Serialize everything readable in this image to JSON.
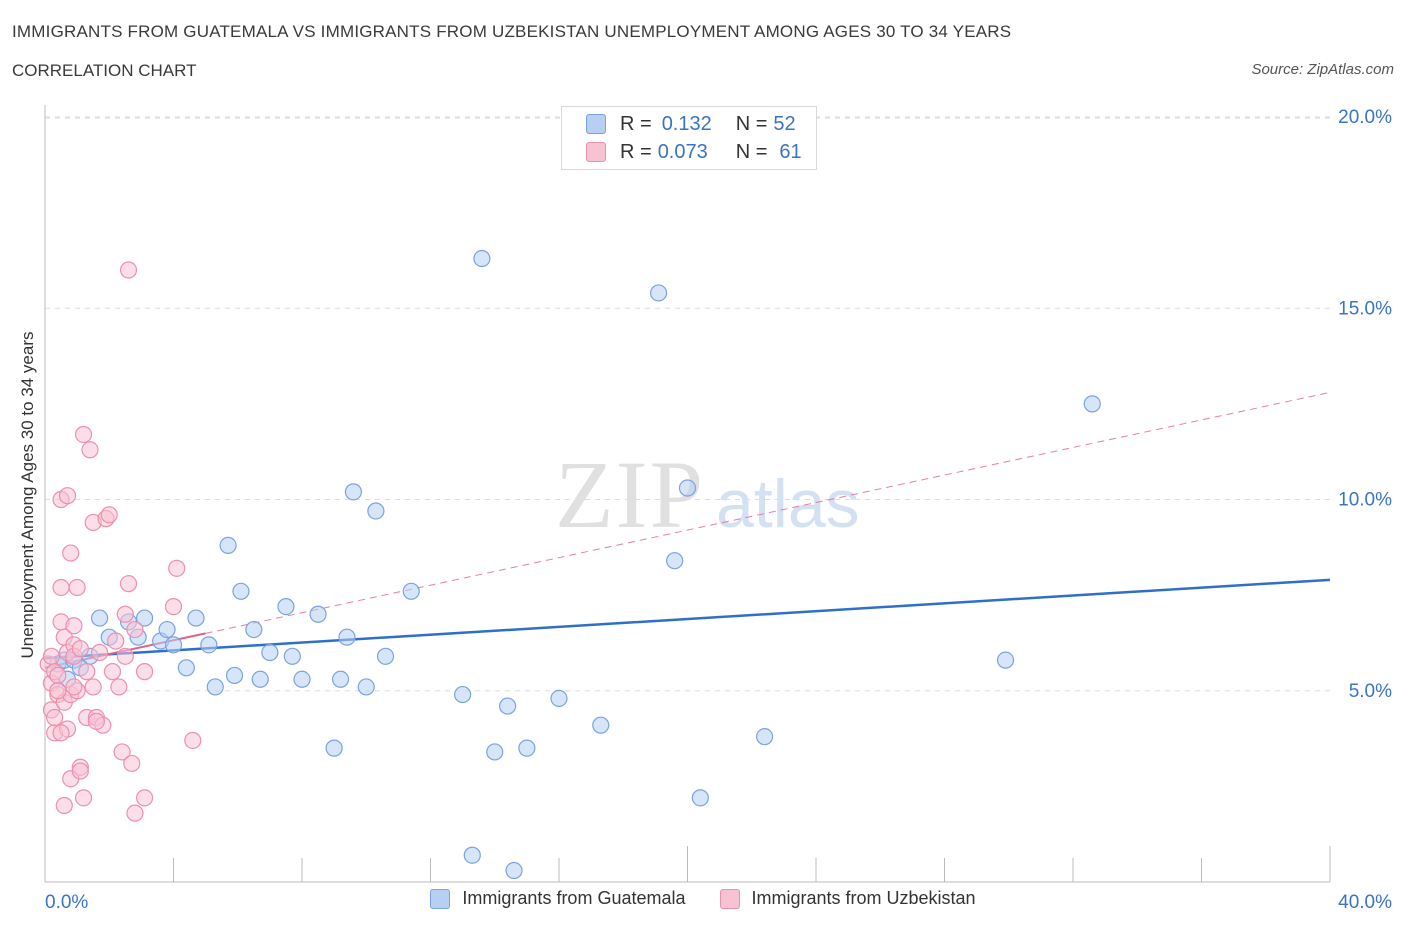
{
  "header": {
    "title": "IMMIGRANTS FROM GUATEMALA VS IMMIGRANTS FROM UZBEKISTAN UNEMPLOYMENT AMONG AGES 30 TO 34 YEARS",
    "subtitle": "CORRELATION CHART",
    "source": "Source: ZipAtlas.com"
  },
  "legend": {
    "r_label": "R =",
    "n_label": "N =",
    "rows": [
      {
        "r": "0.132",
        "n": "52"
      },
      {
        "r": "0.073",
        "n": "61"
      }
    ]
  },
  "watermark": {
    "zip": "ZIP",
    "atlas": "atlas"
  },
  "colors": {
    "guatemala_fill": "#b6cff2",
    "guatemala_stroke": "#7aa3e0",
    "guatemala_line": "#2f6fcc",
    "uzbekistan_fill": "#f7c3d3",
    "uzbekistan_stroke": "#ee8fae",
    "uzbekistan_line": "#e0608e",
    "axis_label": "#3a74c4",
    "grid": "#dddddd"
  },
  "chart_data": {
    "type": "scatter",
    "title": "IMMIGRANTS FROM GUATEMALA VS IMMIGRANTS FROM UZBEKISTAN UNEMPLOYMENT AMONG AGES 30 TO 34 YEARS",
    "xlabel": "",
    "ylabel": "Unemployment Among Ages 30 to 34 years",
    "xlim": [
      0,
      40
    ],
    "ylim": [
      0,
      20
    ],
    "x_tick_labels": [
      "0.0%",
      "40.0%"
    ],
    "y_ticks": [
      5,
      10,
      15,
      20
    ],
    "y_tick_labels": [
      "5.0%",
      "10.0%",
      "15.0%",
      "20.0%"
    ],
    "grid": true,
    "legend_position": "top-center",
    "series": [
      {
        "name": "Immigrants from Guatemala",
        "points": [
          [
            0.4,
            5.7
          ],
          [
            0.6,
            5.8
          ],
          [
            0.7,
            5.3
          ],
          [
            0.9,
            5.8
          ],
          [
            1.4,
            5.9
          ],
          [
            1.7,
            6.9
          ],
          [
            2.0,
            6.4
          ],
          [
            2.6,
            6.8
          ],
          [
            3.1,
            6.9
          ],
          [
            2.9,
            6.4
          ],
          [
            3.6,
            6.3
          ],
          [
            3.8,
            6.6
          ],
          [
            4.0,
            6.2
          ],
          [
            4.4,
            5.6
          ],
          [
            4.7,
            6.9
          ],
          [
            5.1,
            6.2
          ],
          [
            5.3,
            5.1
          ],
          [
            5.7,
            8.8
          ],
          [
            5.9,
            5.4
          ],
          [
            6.1,
            7.6
          ],
          [
            6.5,
            6.6
          ],
          [
            6.7,
            5.3
          ],
          [
            7.0,
            6.0
          ],
          [
            7.5,
            7.2
          ],
          [
            7.7,
            5.9
          ],
          [
            8.0,
            5.3
          ],
          [
            8.5,
            7.0
          ],
          [
            9.0,
            3.5
          ],
          [
            9.2,
            5.3
          ],
          [
            9.4,
            6.4
          ],
          [
            9.6,
            10.2
          ],
          [
            10.0,
            5.1
          ],
          [
            10.3,
            9.7
          ],
          [
            10.6,
            5.9
          ],
          [
            11.4,
            7.6
          ],
          [
            13.0,
            4.9
          ],
          [
            13.3,
            0.7
          ],
          [
            13.6,
            16.3
          ],
          [
            14.0,
            3.4
          ],
          [
            14.4,
            4.6
          ],
          [
            15.0,
            3.5
          ],
          [
            16.0,
            4.8
          ],
          [
            17.3,
            4.1
          ],
          [
            19.1,
            15.4
          ],
          [
            19.6,
            8.4
          ],
          [
            20.0,
            10.3
          ],
          [
            20.4,
            2.2
          ],
          [
            22.4,
            3.8
          ],
          [
            29.9,
            5.8
          ],
          [
            32.6,
            12.5
          ],
          [
            14.6,
            0.3
          ],
          [
            1.1,
            5.6
          ]
        ]
      },
      {
        "name": "Immigrants from Uzbekistan",
        "points": [
          [
            0.1,
            5.7
          ],
          [
            0.2,
            5.2
          ],
          [
            0.2,
            4.5
          ],
          [
            0.3,
            5.5
          ],
          [
            0.3,
            3.9
          ],
          [
            0.4,
            4.9
          ],
          [
            0.4,
            5.4
          ],
          [
            0.5,
            6.8
          ],
          [
            0.5,
            7.7
          ],
          [
            0.5,
            10.0
          ],
          [
            0.6,
            6.4
          ],
          [
            0.6,
            4.7
          ],
          [
            0.6,
            2.0
          ],
          [
            0.7,
            6.0
          ],
          [
            0.7,
            4.0
          ],
          [
            0.7,
            10.1
          ],
          [
            0.8,
            8.6
          ],
          [
            0.8,
            2.7
          ],
          [
            0.8,
            4.9
          ],
          [
            0.9,
            6.2
          ],
          [
            0.9,
            5.9
          ],
          [
            0.9,
            6.7
          ],
          [
            1.0,
            7.7
          ],
          [
            1.0,
            5.0
          ],
          [
            1.1,
            3.0
          ],
          [
            1.1,
            2.9
          ],
          [
            1.2,
            2.2
          ],
          [
            1.2,
            11.7
          ],
          [
            1.3,
            4.3
          ],
          [
            1.3,
            5.5
          ],
          [
            1.4,
            11.3
          ],
          [
            1.5,
            5.1
          ],
          [
            1.5,
            9.4
          ],
          [
            1.6,
            4.3
          ],
          [
            1.7,
            6.0
          ],
          [
            1.8,
            4.1
          ],
          [
            1.9,
            9.5
          ],
          [
            2.0,
            9.6
          ],
          [
            2.1,
            5.5
          ],
          [
            2.2,
            6.3
          ],
          [
            2.3,
            5.1
          ],
          [
            2.4,
            3.4
          ],
          [
            2.5,
            5.9
          ],
          [
            2.5,
            7.0
          ],
          [
            2.6,
            7.8
          ],
          [
            2.6,
            16.0
          ],
          [
            2.7,
            3.1
          ],
          [
            2.8,
            6.6
          ],
          [
            2.8,
            1.8
          ],
          [
            3.1,
            2.2
          ],
          [
            3.1,
            5.5
          ],
          [
            4.0,
            7.2
          ],
          [
            4.1,
            8.2
          ],
          [
            4.6,
            3.7
          ],
          [
            0.2,
            5.9
          ],
          [
            0.3,
            4.3
          ],
          [
            0.4,
            5.0
          ],
          [
            1.6,
            4.2
          ],
          [
            0.5,
            3.9
          ],
          [
            1.1,
            6.1
          ],
          [
            0.9,
            5.1
          ]
        ]
      }
    ],
    "trend_lines": [
      {
        "series": "Immigrants from Guatemala",
        "x": [
          0,
          40
        ],
        "y": [
          5.85,
          7.9
        ],
        "style": "solid"
      },
      {
        "series": "Immigrants from Uzbekistan",
        "x": [
          0,
          5
        ],
        "y": [
          5.6,
          6.5
        ],
        "style": "solid"
      },
      {
        "series": "Immigrants from Uzbekistan",
        "x": [
          5,
          40
        ],
        "y": [
          6.5,
          12.8
        ],
        "style": "dashed"
      }
    ]
  }
}
